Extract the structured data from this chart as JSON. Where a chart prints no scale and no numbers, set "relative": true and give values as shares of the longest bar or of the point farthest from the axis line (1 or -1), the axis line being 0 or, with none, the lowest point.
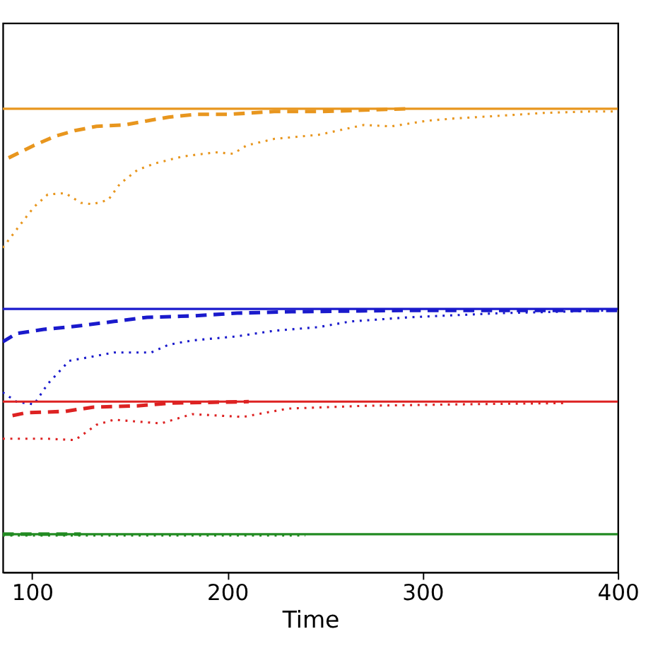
{
  "chart_data": {
    "type": "line",
    "xlabel": "Time",
    "relative": true,
    "xlim": [
      85,
      400
    ],
    "xticks": [
      100,
      200,
      300,
      400
    ],
    "grid": false,
    "series": [
      {
        "color": "#e8961e",
        "line_style": "solid",
        "x": [
          85,
          400
        ],
        "values": [
          1.0,
          1.0
        ]
      },
      {
        "color": "#e8961e",
        "line_style": "dashed",
        "x": [
          88,
          101,
          112,
          122,
          133,
          147,
          159,
          170,
          184,
          201,
          224,
          247,
          293
        ],
        "values": [
          0.894,
          0.921,
          0.941,
          0.953,
          0.962,
          0.965,
          0.974,
          0.982,
          0.988,
          0.988,
          0.994,
          0.994,
          1.0
        ]
      },
      {
        "color": "#e8961e",
        "line_style": "dotted",
        "x": [
          85,
          94,
          101,
          108,
          117,
          125,
          131,
          139,
          145,
          154,
          163,
          177,
          194,
          203,
          210,
          224,
          247,
          260,
          270,
          284,
          302,
          316,
          340,
          362,
          385,
          399
        ],
        "values": [
          0.7,
          0.75,
          0.788,
          0.815,
          0.818,
          0.797,
          0.794,
          0.803,
          0.838,
          0.868,
          0.882,
          0.897,
          0.906,
          0.903,
          0.921,
          0.935,
          0.944,
          0.956,
          0.965,
          0.962,
          0.974,
          0.979,
          0.985,
          0.991,
          0.994,
          0.994
        ]
      },
      {
        "color": "#1a1acc",
        "line_style": "solid",
        "x": [
          85,
          400
        ],
        "values": [
          0.568,
          0.568
        ]
      },
      {
        "color": "#1a1acc",
        "line_style": "dashed",
        "x": [
          85,
          92,
          106,
          119,
          142,
          159,
          182,
          205,
          233,
          293,
          400
        ],
        "values": [
          0.497,
          0.515,
          0.524,
          0.529,
          0.541,
          0.55,
          0.553,
          0.559,
          0.562,
          0.565,
          0.565
        ]
      },
      {
        "color": "#1a1acc",
        "line_style": "dotted",
        "x": [
          85,
          92,
          101,
          108,
          119,
          142,
          161,
          170,
          182,
          205,
          224,
          247,
          263,
          293,
          340,
          399
        ],
        "values": [
          0.388,
          0.368,
          0.362,
          0.406,
          0.456,
          0.474,
          0.474,
          0.491,
          0.5,
          0.509,
          0.521,
          0.529,
          0.541,
          0.55,
          0.559,
          0.565
        ]
      },
      {
        "color": "#dd2222",
        "line_style": "solid",
        "x": [
          85,
          400
        ],
        "values": [
          0.368,
          0.368
        ]
      },
      {
        "color": "#dd2222",
        "line_style": "dashed",
        "x": [
          90,
          97,
          117,
          131,
          154,
          172,
          211
        ],
        "values": [
          0.338,
          0.344,
          0.347,
          0.356,
          0.359,
          0.365,
          0.368
        ]
      },
      {
        "color": "#dd2222",
        "line_style": "dotted",
        "x": [
          85,
          108,
          122,
          125,
          133,
          142,
          166,
          182,
          208,
          231,
          270,
          316,
          374
        ],
        "values": [
          0.288,
          0.288,
          0.285,
          0.294,
          0.318,
          0.329,
          0.321,
          0.341,
          0.335,
          0.353,
          0.359,
          0.362,
          0.365
        ]
      },
      {
        "color": "#228b22",
        "line_style": "solid",
        "x": [
          85,
          400
        ],
        "values": [
          0.082,
          0.082
        ]
      },
      {
        "color": "#228b22",
        "line_style": "dashed",
        "x": [
          85,
          125
        ],
        "values": [
          0.082,
          0.082
        ]
      },
      {
        "color": "#228b22",
        "line_style": "dotted",
        "x": [
          85,
          240
        ],
        "values": [
          0.079,
          0.079
        ]
      }
    ]
  }
}
